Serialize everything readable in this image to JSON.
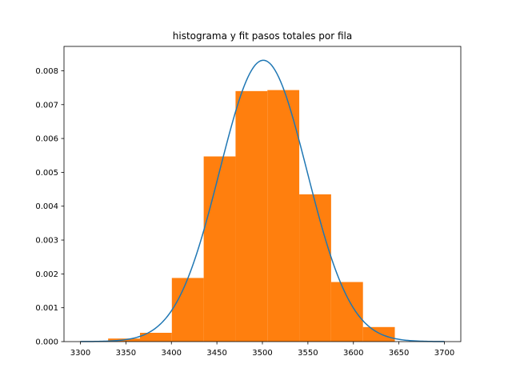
{
  "chart_data": {
    "type": "bar",
    "title": "histograma y fit pasos totales por fila",
    "xlabel": "",
    "ylabel": "",
    "xlim": [
      3282,
      3718
    ],
    "ylim": [
      0,
      0.00872
    ],
    "xticks": [
      3300,
      3350,
      3400,
      3450,
      3500,
      3550,
      3600,
      3650,
      3700
    ],
    "yticks": [
      0.0,
      0.001,
      0.002,
      0.003,
      0.004,
      0.005,
      0.006,
      0.007,
      0.008
    ],
    "grid": false,
    "histogram": {
      "color": "#ff7f0e",
      "bins": [
        {
          "x0": 3330.5,
          "x1": 3365.5,
          "value": 9e-05
        },
        {
          "x0": 3365.5,
          "x1": 3400.5,
          "value": 0.00026
        },
        {
          "x0": 3400.5,
          "x1": 3435.5,
          "value": 0.00188
        },
        {
          "x0": 3435.5,
          "x1": 3470.5,
          "value": 0.00547
        },
        {
          "x0": 3470.5,
          "x1": 3505.5,
          "value": 0.0074
        },
        {
          "x0": 3505.5,
          "x1": 3540.5,
          "value": 0.00743
        },
        {
          "x0": 3540.5,
          "x1": 3575.5,
          "value": 0.00435
        },
        {
          "x0": 3575.5,
          "x1": 3610.5,
          "value": 0.00176
        },
        {
          "x0": 3610.5,
          "x1": 3645.5,
          "value": 0.00043
        }
      ]
    },
    "fit": {
      "type": "line",
      "color": "#1f77b4",
      "model": "normal",
      "mean": 3501,
      "std": 48,
      "x_range": [
        3300,
        3700
      ]
    }
  }
}
